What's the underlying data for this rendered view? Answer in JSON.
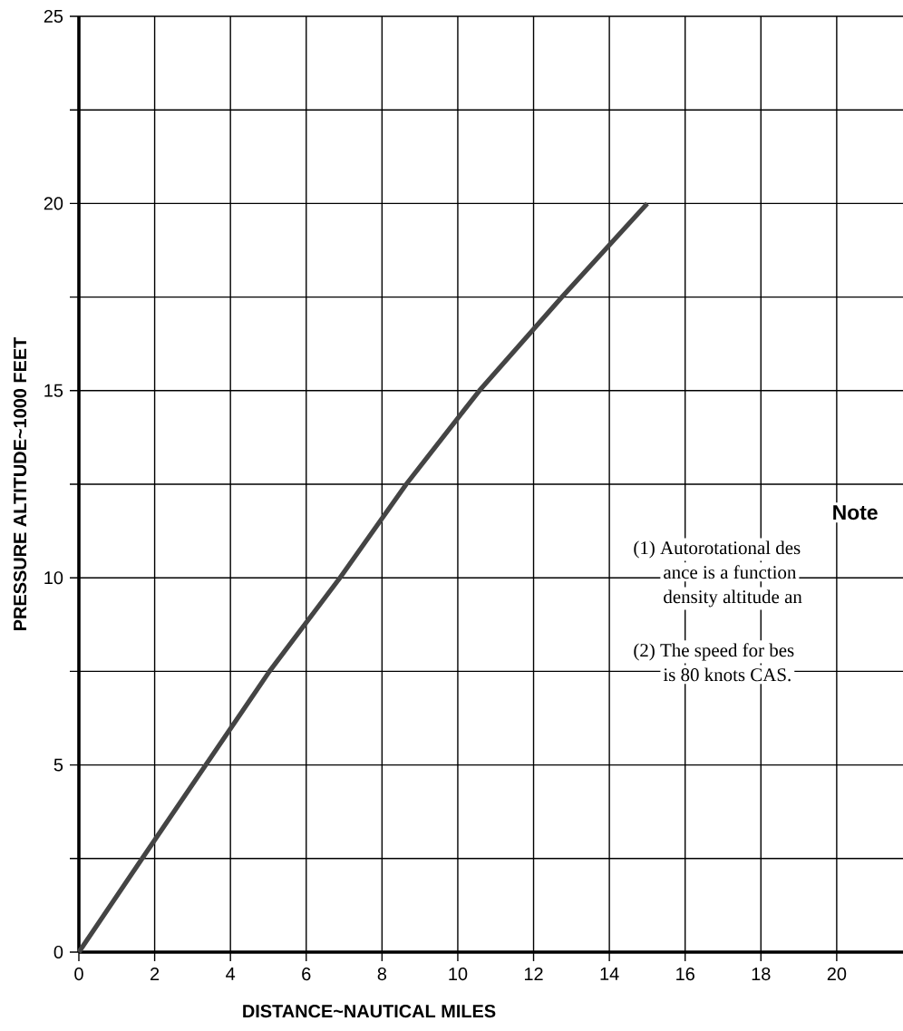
{
  "chart_data": {
    "type": "line",
    "xlabel": "DISTANCE~NAUTICAL MILES",
    "ylabel": "PRESSURE ALTITUDE~1000 FEET",
    "x": [
      0,
      1.67,
      3.35,
      5.03,
      6.89,
      8.64,
      10.57,
      12.75,
      15.0
    ],
    "series": [
      {
        "color": "#444444",
        "values": [
          0,
          2.5,
          5,
          7.5,
          10,
          12.5,
          15,
          17.5,
          20
        ]
      }
    ],
    "xlim": [
      0,
      21.75
    ],
    "ylim": [
      0,
      25
    ],
    "xticks": [
      0,
      2,
      4,
      6,
      8,
      10,
      12,
      14,
      16,
      18,
      20
    ],
    "yticks": [
      0,
      {
        "value": 2.5,
        "label": null
      },
      5,
      {
        "value": 7.5,
        "label": null
      },
      10,
      {
        "value": 12.5,
        "label": null
      },
      15,
      {
        "value": 17.5,
        "label": null
      },
      20,
      {
        "value": 22.5,
        "label": null
      },
      25
    ],
    "grid": true,
    "marker": "none",
    "line_style": "solid",
    "annotations": [
      "Note",
      "(1) Autorotational des",
      "ance is a function",
      "density altitude an",
      "(2) The speed for bes",
      "is 80 knots CAS."
    ]
  }
}
